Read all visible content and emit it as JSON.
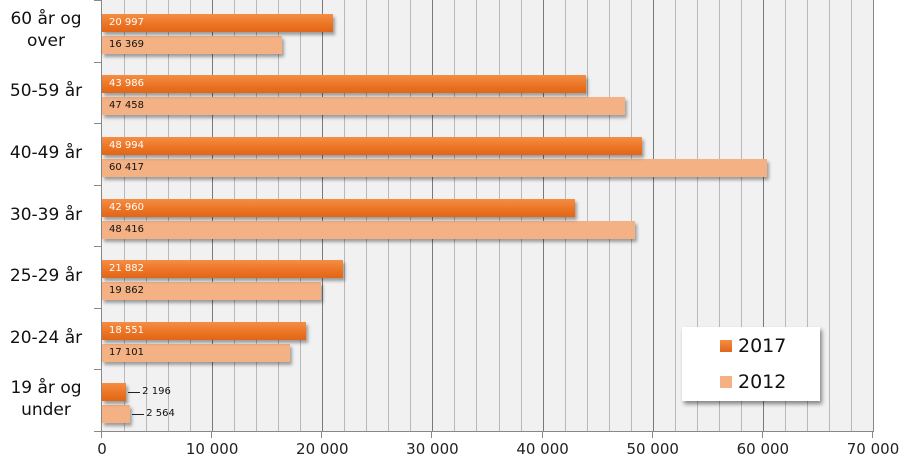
{
  "chart_data": {
    "type": "bar",
    "orientation": "horizontal",
    "title": "",
    "xlabel": "",
    "ylabel": "",
    "xlim": [
      0,
      70000
    ],
    "x_ticks": [
      0,
      10000,
      20000,
      30000,
      40000,
      50000,
      60000,
      70000
    ],
    "x_tick_labels": [
      "0",
      "10 000",
      "20 000",
      "30 000",
      "40 000",
      "50 000",
      "60 000",
      "70 000"
    ],
    "minor_grid_step": 2000,
    "grid": true,
    "legend_position": "lower right inside",
    "categories": [
      "60 år og over",
      "50-59 år",
      "40-49 år",
      "30-39 år",
      "25-29 år",
      "20-24 år",
      "19 år og under"
    ],
    "category_lines": [
      [
        "60 år og",
        "over"
      ],
      [
        "50-59 år"
      ],
      [
        "40-49 år"
      ],
      [
        "30-39 år"
      ],
      [
        "25-29 år"
      ],
      [
        "20-24 år"
      ],
      [
        "19 år og",
        "under"
      ]
    ],
    "series": [
      {
        "name": "2017",
        "color": "#ea7024",
        "values": [
          20997,
          43986,
          48994,
          42960,
          21882,
          18551,
          2196
        ],
        "labels": [
          "20 997",
          "43 986",
          "48 994",
          "42 960",
          "21 882",
          "18 551",
          "2 196"
        ]
      },
      {
        "name": "2012",
        "color": "#f3b184",
        "values": [
          16369,
          47458,
          60417,
          48416,
          19862,
          17101,
          2564
        ],
        "labels": [
          "16 369",
          "47 458",
          "60 417",
          "48 416",
          "19 862",
          "17 101",
          "2 564"
        ]
      }
    ]
  },
  "legend": {
    "items": [
      {
        "label": "2017",
        "color": "#ea7024"
      },
      {
        "label": "2012",
        "color": "#f3b184"
      }
    ]
  }
}
